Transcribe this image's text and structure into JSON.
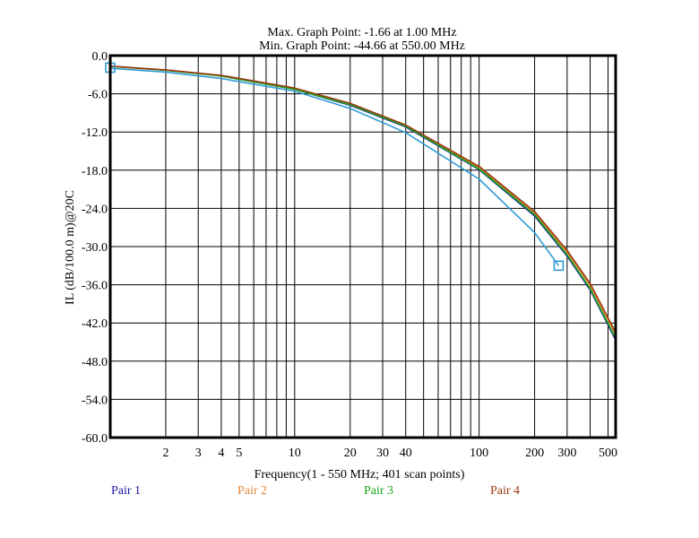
{
  "header": {
    "max_point": "Max. Graph Point: -1.66 at 1.00 MHz",
    "min_point": "Min. Graph Point: -44.66 at 550.00 MHz"
  },
  "chart_data": {
    "type": "line",
    "xlabel": "Frequency(1 - 550 MHz; 401 scan points)",
    "ylabel": "IL (dB/100.0 m)@20C",
    "x_scale": "log",
    "xlim": [
      1,
      550
    ],
    "ylim": [
      -60,
      0
    ],
    "x_ticks": [
      2,
      3,
      4,
      5,
      10,
      20,
      30,
      40,
      100,
      200,
      300,
      500
    ],
    "x_tick_labels": [
      "2",
      "3",
      "4",
      "5",
      "10",
      "20",
      "30",
      "40",
      "100",
      "200",
      "300",
      "500"
    ],
    "y_ticks": [
      0,
      -6,
      -12,
      -18,
      -24,
      -30,
      -36,
      -42,
      -48,
      -54,
      -60
    ],
    "y_tick_labels": [
      "0.0",
      "-6.0",
      "-12.0",
      "-18.0",
      "-24.0",
      "-30.0",
      "-36.0",
      "-42.0",
      "-48.0",
      "-54.0",
      "-60.0"
    ],
    "grid": true,
    "legend_position": "bottom",
    "series": [
      {
        "name": "Pair 1",
        "color": "#1a1aa6",
        "x": [
          1,
          2,
          4,
          10,
          20,
          40,
          100,
          200,
          300,
          400,
          550
        ],
        "y": [
          -1.66,
          -2.3,
          -3.2,
          -5.3,
          -7.8,
          -11.2,
          -17.9,
          -25.2,
          -31.5,
          -36.8,
          -44.66
        ]
      },
      {
        "name": "Pair 2",
        "color": "#e08a3c",
        "x": [
          1,
          2,
          4,
          10,
          20,
          40,
          100,
          200,
          300,
          400,
          550
        ],
        "y": [
          -1.7,
          -2.3,
          -3.2,
          -5.2,
          -7.6,
          -11.0,
          -17.6,
          -24.8,
          -30.9,
          -36.1,
          -43.8
        ]
      },
      {
        "name": "Pair 3",
        "color": "#1aa61a",
        "x": [
          1,
          2,
          4,
          10,
          20,
          40,
          100,
          200,
          300,
          400,
          550
        ],
        "y": [
          -1.68,
          -2.3,
          -3.2,
          -5.3,
          -7.7,
          -11.1,
          -17.8,
          -25.0,
          -31.3,
          -36.6,
          -44.4
        ]
      },
      {
        "name": "Pair 4",
        "color": "#9a3a12",
        "x": [
          1,
          2,
          4,
          10,
          20,
          40,
          100,
          200,
          300,
          400,
          550
        ],
        "y": [
          -1.66,
          -2.25,
          -3.1,
          -5.1,
          -7.5,
          -10.9,
          -17.4,
          -24.5,
          -30.6,
          -35.8,
          -43.5
        ]
      },
      {
        "name": "",
        "color": "#2f9bd6",
        "x": [
          1,
          2,
          4,
          10,
          20,
          40,
          100,
          200,
          270
        ],
        "y": [
          -2.0,
          -2.6,
          -3.6,
          -5.6,
          -8.3,
          -12.1,
          -19.4,
          -27.8,
          -33.0
        ]
      }
    ],
    "markers": [
      {
        "x": 1,
        "y": -1.9,
        "color": "#2f9bd6"
      },
      {
        "x": 270,
        "y": -33.0,
        "color": "#2f9bd6"
      }
    ]
  }
}
